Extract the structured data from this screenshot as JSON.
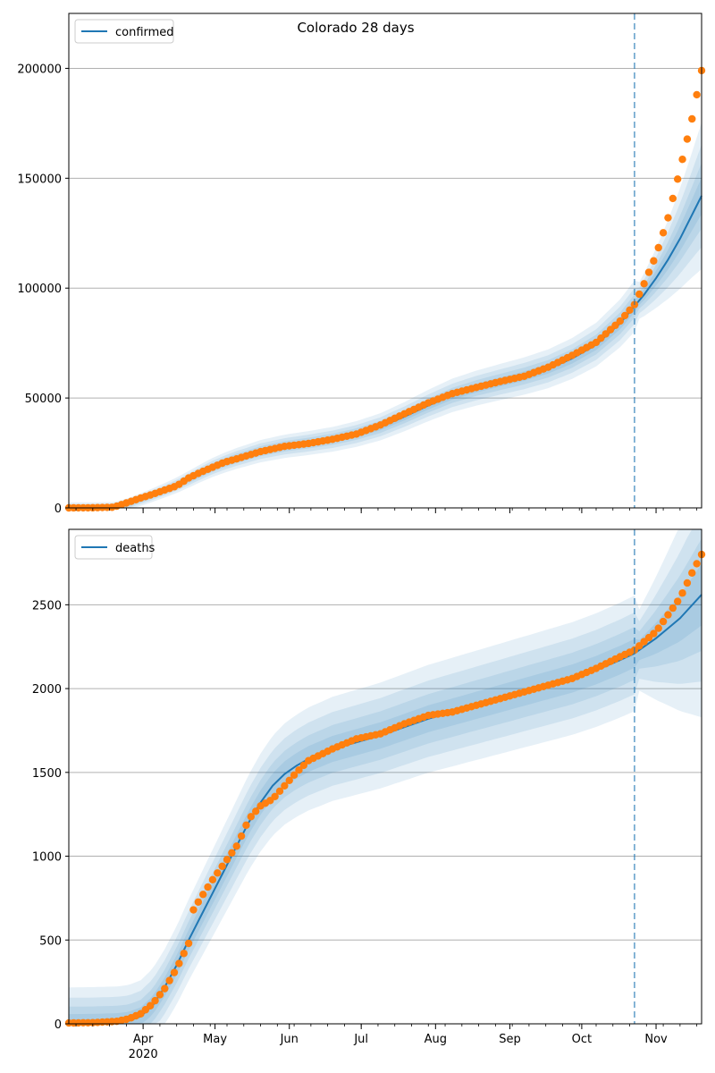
{
  "figure": {
    "title": "Colorado 28 days"
  },
  "colors": {
    "model": "#1f77b4",
    "observed": "#ff7f0e",
    "grid": "#b0b0b0"
  },
  "x_axis": {
    "ticks": [
      {
        "label": "Apr",
        "day": 31
      },
      {
        "label": "May",
        "day": 61
      },
      {
        "label": "Jun",
        "day": 92
      },
      {
        "label": "Jul",
        "day": 122
      },
      {
        "label": "Aug",
        "day": 153
      },
      {
        "label": "Sep",
        "day": 184
      },
      {
        "label": "Oct",
        "day": 214
      },
      {
        "label": "Nov",
        "day": 245
      }
    ],
    "year_label": "2020",
    "forecast_day": 236
  },
  "chart_data": [
    {
      "type": "line",
      "x_unit": "days since 2020-03-01",
      "xlim": [
        0,
        264
      ],
      "ylim": [
        0,
        225000
      ],
      "yticks": [
        0,
        50000,
        100000,
        150000,
        200000
      ],
      "grid": true,
      "legend": "top-left",
      "series": [
        {
          "name": "confirmed",
          "kind": "model",
          "x": [
            0,
            10,
            18,
            20,
            25,
            30,
            35,
            40,
            45,
            50,
            55,
            60,
            65,
            70,
            80,
            90,
            100,
            110,
            120,
            130,
            140,
            150,
            160,
            170,
            180,
            190,
            200,
            210,
            220,
            230,
            236,
            240,
            245,
            250,
            255,
            264
          ],
          "y": [
            0,
            30,
            150,
            400,
            1800,
            3800,
            5800,
            8000,
            10300,
            13000,
            15800,
            18400,
            20600,
            22500,
            25800,
            28000,
            29500,
            31200,
            33600,
            36900,
            41500,
            46600,
            51200,
            54500,
            57300,
            60000,
            63300,
            68000,
            74300,
            84000,
            91800,
            97000,
            104500,
            113000,
            122500,
            142000
          ]
        },
        {
          "name": "",
          "kind": "observed",
          "x": [
            0,
            10,
            18,
            20,
            25,
            30,
            35,
            40,
            45,
            50,
            55,
            60,
            65,
            70,
            80,
            90,
            100,
            110,
            120,
            130,
            140,
            150,
            160,
            170,
            180,
            190,
            200,
            210,
            220,
            230,
            236,
            240,
            245,
            250,
            255,
            260,
            264
          ],
          "y": [
            0,
            50,
            300,
            800,
            2600,
            4500,
            6200,
            8100,
            10000,
            13600,
            16200,
            18500,
            20800,
            22300,
            25600,
            28000,
            29300,
            31200,
            33600,
            37700,
            42800,
            47800,
            52000,
            54800,
            57500,
            59900,
            64000,
            69400,
            75300,
            85000,
            92500,
            102000,
            115000,
            132000,
            154000,
            177000,
            199000
          ]
        }
      ]
    },
    {
      "type": "line",
      "x_unit": "days since 2020-03-01",
      "xlim": [
        0,
        264
      ],
      "ylim": [
        0,
        2950
      ],
      "yticks": [
        0,
        500,
        1000,
        1500,
        2000,
        2500
      ],
      "grid": true,
      "legend": "top-left",
      "series": [
        {
          "name": "deaths",
          "kind": "model",
          "x": [
            0,
            10,
            20,
            25,
            30,
            35,
            40,
            45,
            50,
            55,
            60,
            65,
            70,
            75,
            80,
            85,
            90,
            95,
            100,
            110,
            120,
            130,
            140,
            150,
            160,
            170,
            180,
            190,
            200,
            210,
            220,
            230,
            236,
            240,
            245,
            250,
            255,
            264
          ],
          "y": [
            5,
            6,
            10,
            18,
            45,
            110,
            220,
            350,
            500,
            640,
            780,
            920,
            1060,
            1200,
            1320,
            1420,
            1490,
            1540,
            1580,
            1640,
            1680,
            1720,
            1770,
            1820,
            1860,
            1900,
            1940,
            1980,
            2020,
            2060,
            2110,
            2170,
            2210,
            2250,
            2300,
            2360,
            2420,
            2560
          ]
        },
        {
          "name": "",
          "kind": "observed",
          "x": [
            0,
            10,
            20,
            25,
            30,
            35,
            40,
            45,
            50,
            52,
            55,
            60,
            65,
            70,
            73,
            75,
            80,
            85,
            90,
            95,
            100,
            110,
            120,
            130,
            140,
            150,
            160,
            170,
            180,
            190,
            200,
            210,
            220,
            230,
            236,
            240,
            245,
            250,
            255,
            260,
            264
          ],
          "y": [
            5,
            7,
            15,
            30,
            60,
            120,
            210,
            330,
            480,
            680,
            750,
            860,
            960,
            1060,
            1150,
            1220,
            1300,
            1340,
            1420,
            1500,
            1570,
            1640,
            1700,
            1730,
            1790,
            1840,
            1860,
            1900,
            1940,
            1980,
            2020,
            2060,
            2120,
            2190,
            2230,
            2280,
            2340,
            2440,
            2540,
            2690,
            2800
          ]
        }
      ]
    }
  ]
}
